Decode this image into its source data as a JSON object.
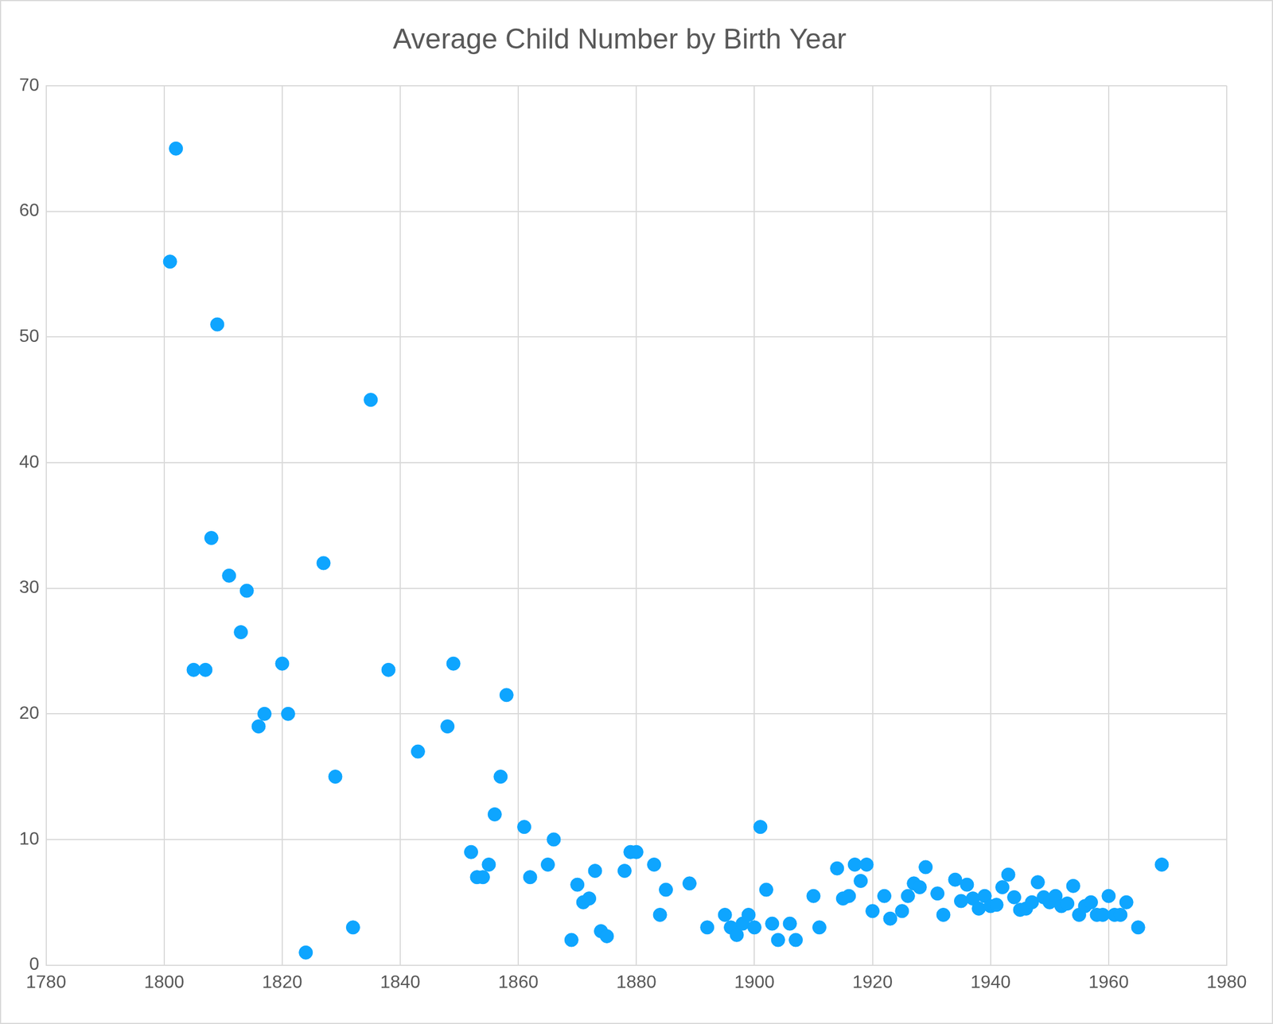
{
  "chart_data": {
    "type": "scatter",
    "title": "Average Child Number by Birth Year",
    "x": [
      1801,
      1802,
      1809,
      1808,
      1811,
      1814,
      1813,
      1805,
      1807,
      1820,
      1817,
      1821,
      1816,
      1827,
      1829,
      1824,
      1832,
      1835,
      1838,
      1843,
      1848,
      1849,
      1858,
      1857,
      1856,
      1852,
      1853,
      1854,
      1855,
      1861,
      1862,
      1865,
      1866,
      1869,
      1870,
      1871,
      1872,
      1873,
      1874,
      1875,
      1878,
      1879,
      1880,
      1883,
      1884,
      1885,
      1889,
      1892,
      1895,
      1896,
      1897,
      1898,
      1899,
      1900,
      1901,
      1902,
      1903,
      1904,
      1906,
      1907,
      1910,
      1911,
      1914,
      1915,
      1916,
      1917,
      1918,
      1919,
      1920,
      1922,
      1923,
      1925,
      1926,
      1927,
      1928,
      1929,
      1931,
      1932,
      1934,
      1935,
      1936,
      1937,
      1938,
      1939,
      1940,
      1941,
      1942,
      1943,
      1944,
      1945,
      1946,
      1947,
      1948,
      1949,
      1950,
      1951,
      1952,
      1953,
      1954,
      1955,
      1956,
      1957,
      1958,
      1959,
      1960,
      1961,
      1962,
      1963,
      1965,
      1969
    ],
    "values": [
      56,
      65,
      51,
      34,
      31,
      29.8,
      26.5,
      23.5,
      23.5,
      24,
      20,
      20,
      19,
      32,
      15,
      1,
      3,
      45,
      23.5,
      17,
      19,
      24,
      21.5,
      15,
      12,
      9,
      7,
      7,
      8,
      11,
      7,
      8,
      10,
      2,
      6.4,
      5,
      5.3,
      7.5,
      2.7,
      2.3,
      7.5,
      9,
      9,
      8,
      4,
      6,
      6.5,
      3,
      4,
      3,
      2.4,
      3.3,
      4,
      3,
      11,
      6,
      3.3,
      2,
      3.3,
      2,
      5.5,
      3,
      7.7,
      5.3,
      5.5,
      8,
      6.7,
      8,
      4.3,
      5.5,
      3.7,
      4.3,
      5.5,
      6.5,
      6.2,
      7.8,
      5.7,
      4,
      6.8,
      5.1,
      6.4,
      5.3,
      4.5,
      5.5,
      4.7,
      4.8,
      6.2,
      7.2,
      5.4,
      4.4,
      4.5,
      5,
      6.6,
      5.4,
      5,
      5.5,
      4.7,
      4.9,
      6.3,
      4,
      4.7,
      5,
      4,
      4,
      5.5,
      4,
      4,
      5,
      3,
      8
    ],
    "color": "#0ea5ff",
    "xlim": [
      1780,
      1980
    ],
    "xticks": [
      1780,
      1800,
      1820,
      1840,
      1860,
      1880,
      1900,
      1920,
      1940,
      1960,
      1980
    ],
    "ylim": [
      0,
      70
    ],
    "yticks": [
      0,
      10,
      20,
      30,
      40,
      50,
      60,
      70
    ],
    "grid": true
  }
}
